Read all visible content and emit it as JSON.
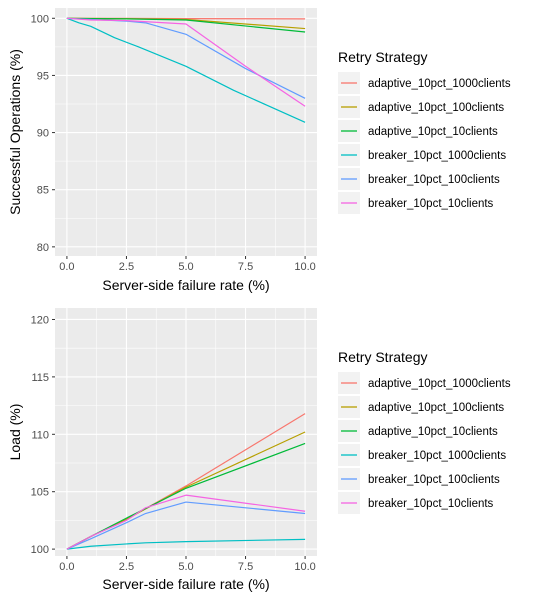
{
  "chart_data": [
    {
      "type": "line",
      "title": "",
      "xlabel": "Server-side failure rate (%)",
      "ylabel": "Successful Operations (%)",
      "xlim": [
        -0.5,
        10.5
      ],
      "ylim": [
        79.2,
        100.9
      ],
      "xticks": [
        0,
        2.5,
        5,
        7.5,
        10
      ],
      "xtick_labels": [
        "0.0",
        "2.5",
        "5.0",
        "7.5",
        "10.0"
      ],
      "yticks": [
        80,
        85,
        90,
        95,
        100
      ],
      "ytick_labels": [
        "80",
        "85",
        "90",
        "95",
        "100"
      ],
      "grid": true,
      "legend": {
        "title": "Retry Strategy",
        "position": "right"
      },
      "series": [
        {
          "name": "adaptive_10pct_1000clients",
          "color": "#F8766D",
          "x": [
            0,
            1,
            2.5,
            5,
            10
          ],
          "y": [
            100,
            100,
            100,
            99.97,
            99.95
          ]
        },
        {
          "name": "adaptive_10pct_100clients",
          "color": "#B79F00",
          "x": [
            0,
            1,
            2.5,
            5,
            10
          ],
          "y": [
            100,
            99.98,
            99.96,
            99.9,
            99.1
          ]
        },
        {
          "name": "adaptive_10pct_10clients",
          "color": "#00BA38",
          "x": [
            0,
            1,
            2.5,
            5,
            10
          ],
          "y": [
            100,
            99.97,
            99.95,
            99.85,
            98.8
          ]
        },
        {
          "name": "breaker_10pct_1000clients",
          "color": "#00BFC4",
          "x": [
            0,
            0.5,
            1,
            2,
            3,
            5,
            7,
            10
          ],
          "y": [
            100,
            99.6,
            99.3,
            98.3,
            97.5,
            95.8,
            93.7,
            90.9
          ]
        },
        {
          "name": "breaker_10pct_100clients",
          "color": "#619CFF",
          "x": [
            0,
            1,
            2.5,
            3.3,
            5,
            7.5,
            10
          ],
          "y": [
            100,
            99.9,
            99.75,
            99.6,
            98.6,
            95.6,
            93
          ]
        },
        {
          "name": "breaker_10pct_10clients",
          "color": "#F564E3",
          "x": [
            0,
            1,
            2.5,
            5,
            7.5,
            10
          ],
          "y": [
            100,
            99.85,
            99.8,
            99.5,
            95.8,
            92.3
          ]
        }
      ]
    },
    {
      "type": "line",
      "title": "",
      "xlabel": "Server-side failure rate (%)",
      "ylabel": "Load (%)",
      "xlim": [
        -0.5,
        10.5
      ],
      "ylim": [
        99.4,
        121
      ],
      "xticks": [
        0,
        2.5,
        5,
        7.5,
        10
      ],
      "xtick_labels": [
        "0.0",
        "2.5",
        "5.0",
        "7.5",
        "10.0"
      ],
      "yticks": [
        100,
        105,
        110,
        115,
        120
      ],
      "ytick_labels": [
        "100",
        "105",
        "110",
        "115",
        "120"
      ],
      "grid": true,
      "legend": {
        "title": "Retry Strategy",
        "position": "right"
      },
      "series": [
        {
          "name": "adaptive_10pct_1000clients",
          "color": "#F8766D",
          "x": [
            0,
            1,
            2.5,
            5,
            10
          ],
          "y": [
            100,
            101.1,
            102.6,
            105.5,
            111.8
          ]
        },
        {
          "name": "adaptive_10pct_100clients",
          "color": "#B79F00",
          "x": [
            0,
            1,
            2.5,
            5,
            10
          ],
          "y": [
            100,
            101.1,
            102.6,
            105.4,
            110.2
          ]
        },
        {
          "name": "adaptive_10pct_10clients",
          "color": "#00BA38",
          "x": [
            0,
            1,
            2.5,
            5,
            10
          ],
          "y": [
            100,
            101.1,
            102.7,
            105.3,
            109.2
          ]
        },
        {
          "name": "breaker_10pct_1000clients",
          "color": "#00BFC4",
          "x": [
            0,
            1,
            2.5,
            3.3,
            5,
            10
          ],
          "y": [
            100,
            100.25,
            100.45,
            100.55,
            100.65,
            100.85
          ]
        },
        {
          "name": "breaker_10pct_100clients",
          "color": "#619CFF",
          "x": [
            0,
            1,
            2.5,
            3.3,
            5,
            10
          ],
          "y": [
            100,
            100.9,
            102.3,
            103.1,
            104.1,
            103.1
          ]
        },
        {
          "name": "breaker_10pct_10clients",
          "color": "#F564E3",
          "x": [
            0,
            1,
            2.5,
            3.3,
            5,
            10
          ],
          "y": [
            100,
            101.1,
            102.5,
            103.6,
            104.7,
            103.3
          ]
        }
      ]
    }
  ]
}
